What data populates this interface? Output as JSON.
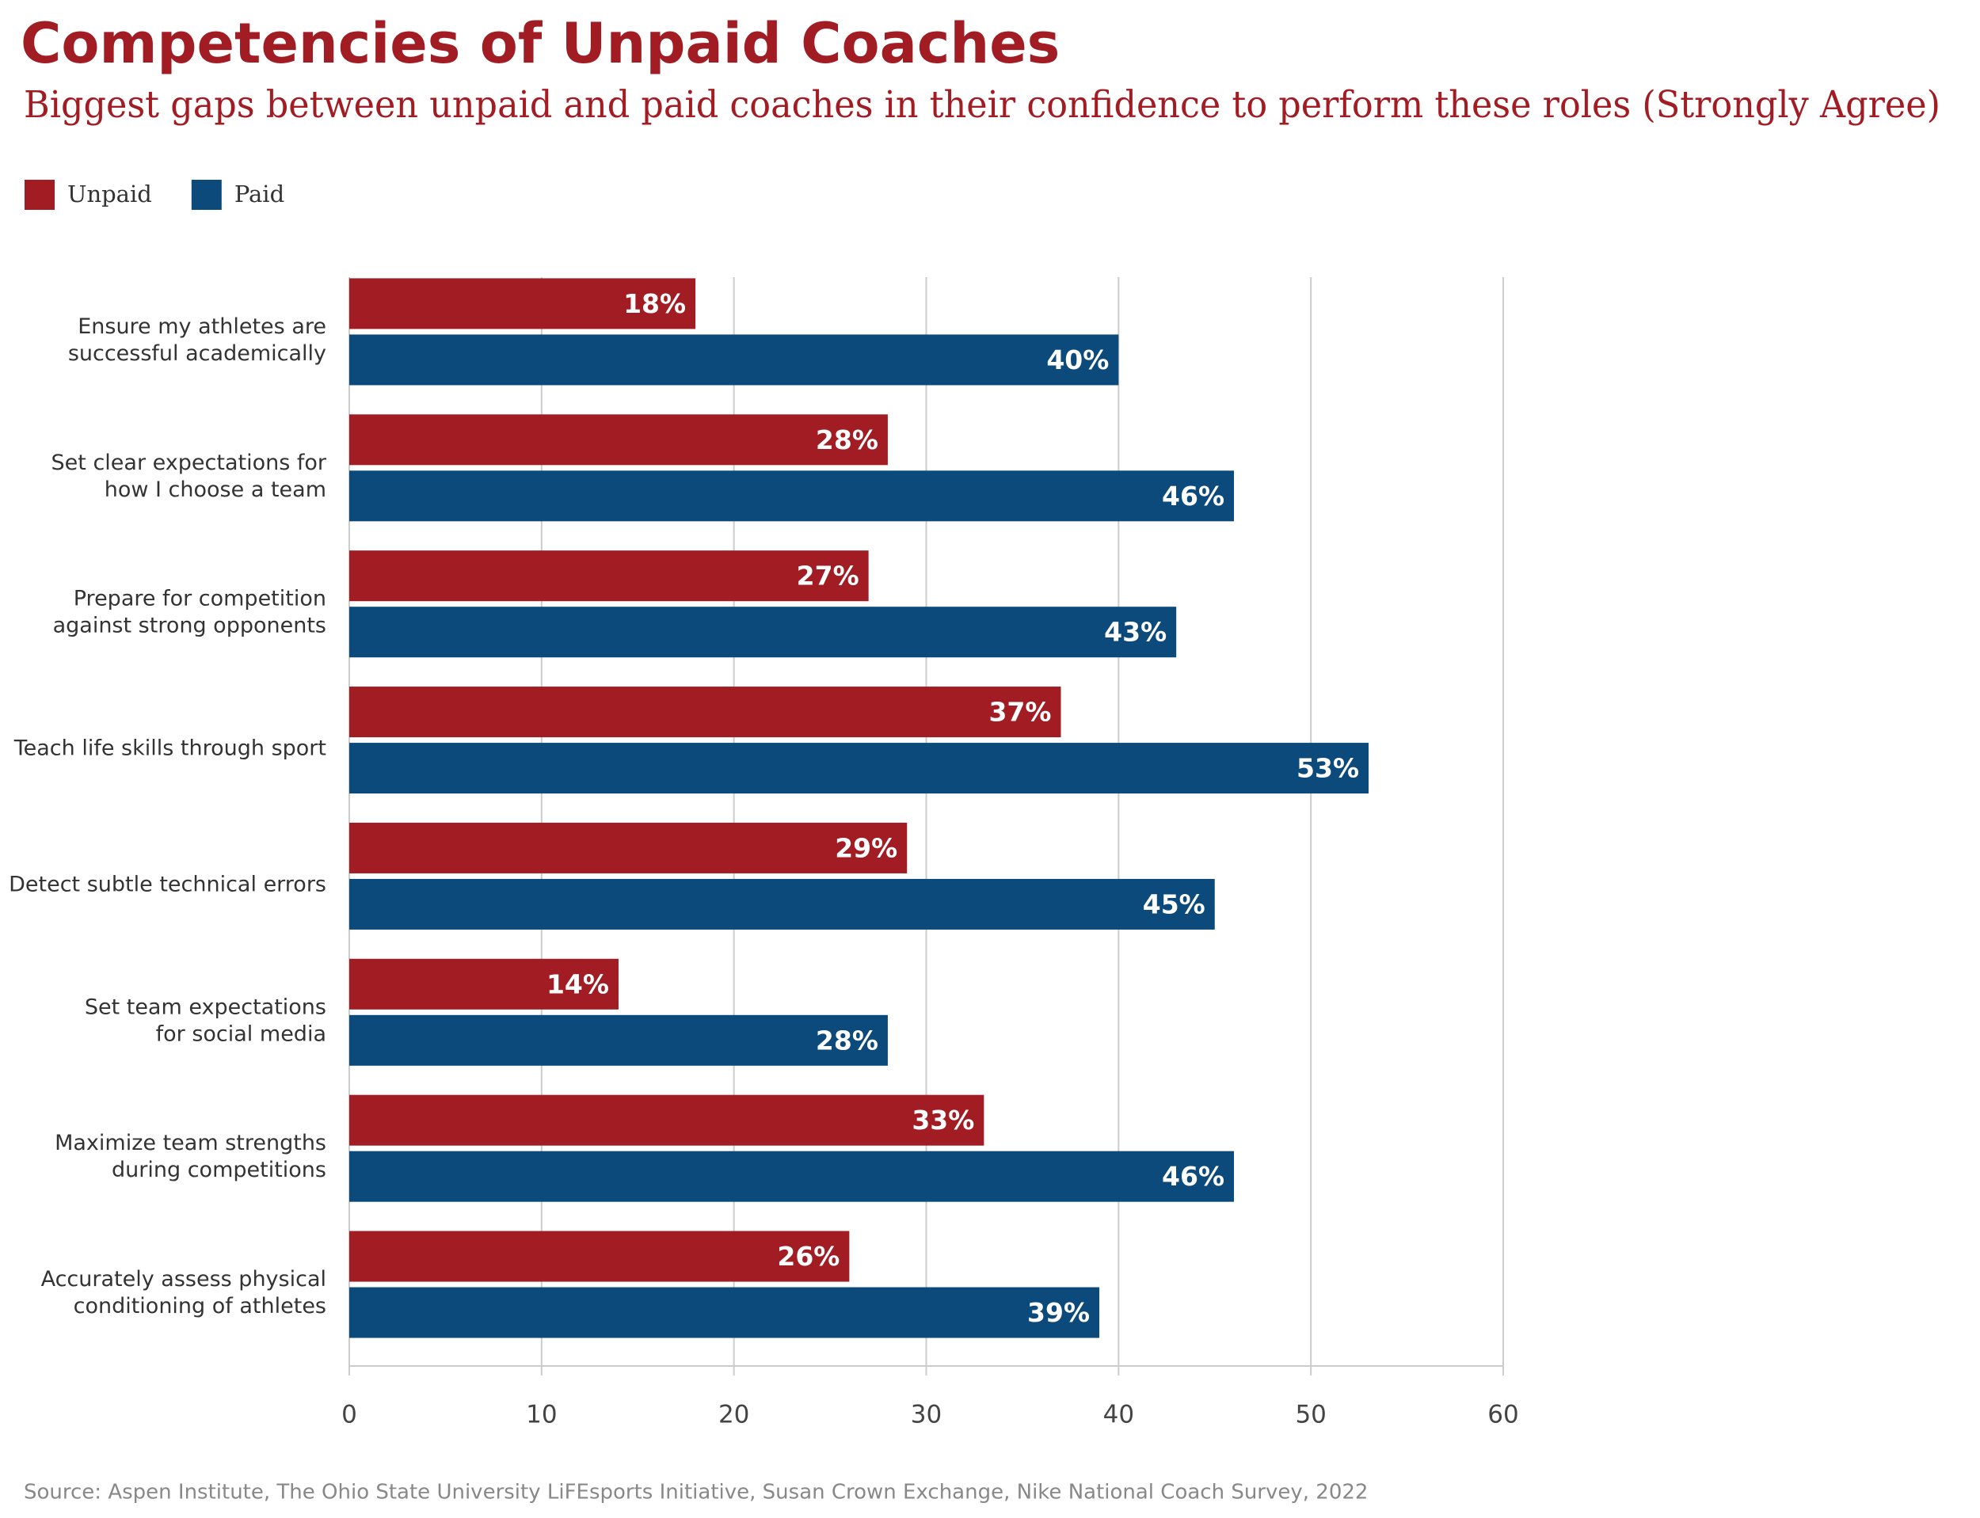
{
  "chart_data": {
    "type": "bar",
    "orientation": "horizontal",
    "title": "Competencies of Unpaid Coaches",
    "subtitle": "Biggest gaps between unpaid and paid coaches in their confidence to perform these roles (Strongly Agree)",
    "source": "Source: Aspen Institute, The Ohio State University LiFEsports Initiative, Susan Crown Exchange, Nike National Coach Survey, 2022",
    "categories": [
      "Ensure my athletes are\nsuccessful academically",
      "Set clear expectations for\nhow I choose a team",
      "Prepare for competition\nagainst strong opponents",
      "Teach life skills through sport",
      "Detect subtle technical errors",
      "Set team expectations\nfor social media",
      "Maximize team strengths\nduring competitions",
      "Accurately assess physical\nconditioning of athletes"
    ],
    "series": [
      {
        "name": "Unpaid",
        "color": "#a21c24",
        "values": [
          18,
          28,
          27,
          37,
          29,
          14,
          33,
          26
        ],
        "value_labels": [
          "18%",
          "28%",
          "27%",
          "37%",
          "29%",
          "14%",
          "33%",
          "26%"
        ]
      },
      {
        "name": "Paid",
        "color": "#0b4a7b",
        "values": [
          40,
          46,
          43,
          53,
          45,
          28,
          46,
          39
        ],
        "value_labels": [
          "40%",
          "46%",
          "43%",
          "53%",
          "45%",
          "28%",
          "46%",
          "39%"
        ]
      }
    ],
    "xlim": [
      0,
      60
    ],
    "xticks": [
      0,
      10,
      20,
      30,
      40,
      50,
      60
    ],
    "grid": true,
    "legend": "top-left"
  }
}
